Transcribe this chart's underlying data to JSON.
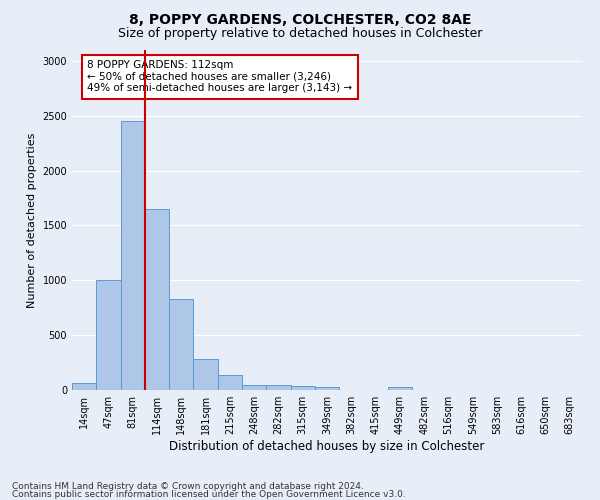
{
  "title_line1": "8, POPPY GARDENS, COLCHESTER, CO2 8AE",
  "title_line2": "Size of property relative to detached houses in Colchester",
  "xlabel": "Distribution of detached houses by size in Colchester",
  "ylabel": "Number of detached properties",
  "categories": [
    "14sqm",
    "47sqm",
    "81sqm",
    "114sqm",
    "148sqm",
    "181sqm",
    "215sqm",
    "248sqm",
    "282sqm",
    "315sqm",
    "349sqm",
    "382sqm",
    "415sqm",
    "449sqm",
    "482sqm",
    "516sqm",
    "549sqm",
    "583sqm",
    "616sqm",
    "650sqm",
    "683sqm"
  ],
  "values": [
    60,
    1000,
    2450,
    1650,
    830,
    285,
    140,
    50,
    50,
    40,
    25,
    0,
    0,
    30,
    0,
    0,
    0,
    0,
    0,
    0,
    0
  ],
  "bar_color": "#aec6e8",
  "bar_edgecolor": "#5b9bd5",
  "ylim": [
    0,
    3100
  ],
  "yticks": [
    0,
    500,
    1000,
    1500,
    2000,
    2500,
    3000
  ],
  "vline_x": 2.5,
  "vline_color": "#cc0000",
  "annotation_text": "8 POPPY GARDENS: 112sqm\n← 50% of detached houses are smaller (3,246)\n49% of semi-detached houses are larger (3,143) →",
  "annotation_box_edgecolor": "#cc0000",
  "annotation_box_facecolor": "#ffffff",
  "footer_line1": "Contains HM Land Registry data © Crown copyright and database right 2024.",
  "footer_line2": "Contains public sector information licensed under the Open Government Licence v3.0.",
  "background_color": "#e8eef7",
  "plot_background_color": "#e8eef7",
  "grid_color": "#ffffff",
  "title1_fontsize": 10,
  "title2_fontsize": 9,
  "xlabel_fontsize": 8.5,
  "ylabel_fontsize": 8,
  "tick_fontsize": 7,
  "footer_fontsize": 6.5,
  "annotation_fontsize": 7.5
}
